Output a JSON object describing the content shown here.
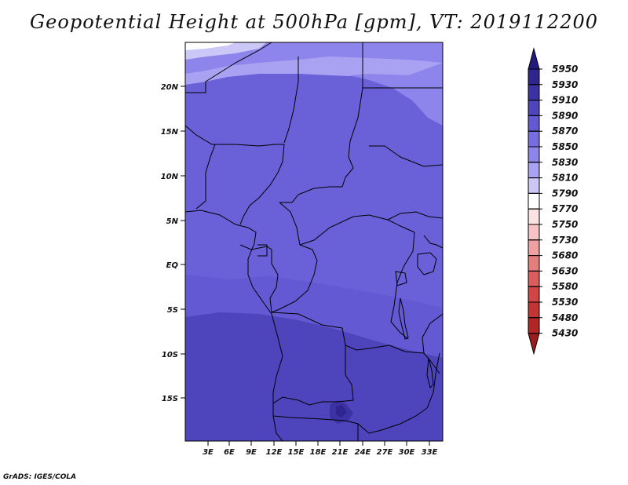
{
  "title": "Geopotential Height at 500hPa [gpm], VT: 2019112200",
  "credit": "GrADS: IGES/COLA",
  "map": {
    "lat_labels": [
      "20N",
      "15N",
      "10N",
      "5N",
      "EQ",
      "5S",
      "10S",
      "15S"
    ],
    "lon_labels": [
      "3E",
      "6E",
      "9E",
      "12E",
      "15E",
      "18E",
      "21E",
      "24E",
      "27E",
      "30E",
      "33E"
    ]
  },
  "colorbar": {
    "levels": [
      "5950",
      "5930",
      "5910",
      "5890",
      "5870",
      "5850",
      "5830",
      "5810",
      "5790",
      "5770",
      "5750",
      "5730",
      "5680",
      "5630",
      "5580",
      "5530",
      "5480",
      "5430"
    ],
    "colors": {
      "above_5950": "#241b7e",
      "5930_5950": "#2e2590",
      "5910_5930": "#3b32a4",
      "5890_5910": "#4e45bc",
      "5870_5890": "#6359d2",
      "5850_5870": "#776de2",
      "5830_5850": "#8d84ec",
      "5810_5830": "#a9a2f2",
      "5790_5810": "#cbc7f7",
      "5770_5790": "#ffffff",
      "5750_5770": "#fbe3e3",
      "5730_5750": "#f6c4c4",
      "5680_5730": "#efa0a0",
      "5630_5680": "#e67d7d",
      "5580_5630": "#dc5d5d",
      "5530_5580": "#d24545",
      "5480_5530": "#c43434",
      "5430_5480": "#b22626",
      "below_5430": "#9b1c1c"
    }
  }
}
